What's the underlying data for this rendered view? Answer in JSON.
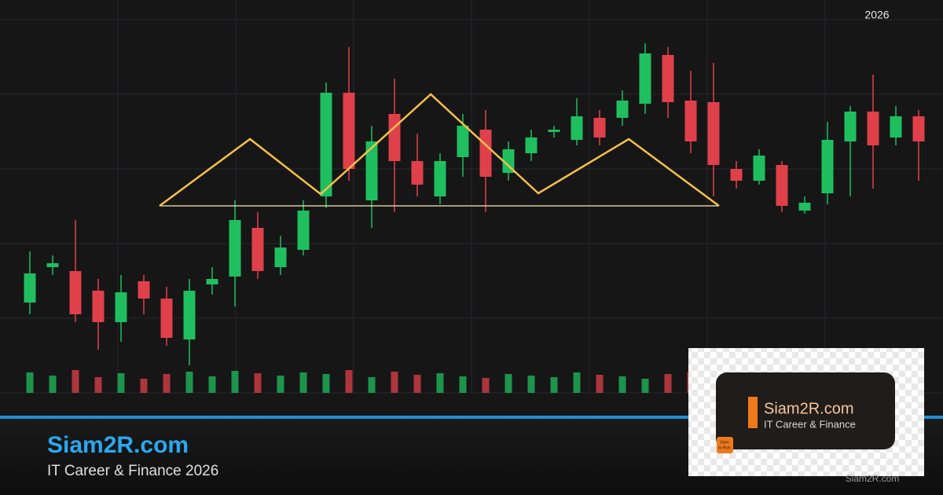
{
  "chart_data": {
    "type": "candlestick",
    "year": "2026",
    "candles": [
      {
        "open": 115,
        "high": 180,
        "low": 100,
        "close": 152
      },
      {
        "open": 160,
        "high": 175,
        "low": 150,
        "close": 165
      },
      {
        "open": 155,
        "high": 220,
        "low": 90,
        "close": 100
      },
      {
        "open": 130,
        "high": 145,
        "low": 55,
        "close": 90
      },
      {
        "open": 90,
        "high": 150,
        "low": 65,
        "close": 128
      },
      {
        "open": 142,
        "high": 150,
        "low": 100,
        "close": 120
      },
      {
        "open": 120,
        "high": 135,
        "low": 60,
        "close": 70
      },
      {
        "open": 68,
        "high": 145,
        "low": 35,
        "close": 130
      },
      {
        "open": 138,
        "high": 160,
        "low": 125,
        "close": 145
      },
      {
        "open": 148,
        "high": 245,
        "low": 110,
        "close": 220
      },
      {
        "open": 210,
        "high": 230,
        "low": 145,
        "close": 155
      },
      {
        "open": 160,
        "high": 200,
        "low": 150,
        "close": 185
      },
      {
        "open": 182,
        "high": 245,
        "low": 175,
        "close": 232
      },
      {
        "open": 250,
        "high": 395,
        "low": 235,
        "close": 382
      },
      {
        "open": 382,
        "high": 440,
        "low": 270,
        "close": 285
      },
      {
        "open": 245,
        "high": 340,
        "low": 210,
        "close": 320
      },
      {
        "open": 355,
        "high": 400,
        "low": 230,
        "close": 295
      },
      {
        "open": 295,
        "high": 330,
        "low": 250,
        "close": 265
      },
      {
        "open": 250,
        "high": 305,
        "low": 240,
        "close": 295
      },
      {
        "open": 300,
        "high": 355,
        "low": 275,
        "close": 340
      },
      {
        "open": 335,
        "high": 360,
        "low": 230,
        "close": 275
      },
      {
        "open": 280,
        "high": 320,
        "low": 270,
        "close": 310
      },
      {
        "open": 305,
        "high": 335,
        "low": 295,
        "close": 325
      },
      {
        "open": 332,
        "high": 340,
        "low": 325,
        "close": 335
      },
      {
        "open": 322,
        "high": 375,
        "low": 315,
        "close": 352
      },
      {
        "open": 350,
        "high": 360,
        "low": 315,
        "close": 325
      },
      {
        "open": 350,
        "high": 385,
        "low": 340,
        "close": 372
      },
      {
        "open": 368,
        "high": 445,
        "low": 355,
        "close": 432
      },
      {
        "open": 430,
        "high": 440,
        "low": 350,
        "close": 370
      },
      {
        "open": 372,
        "high": 410,
        "low": 305,
        "close": 320
      },
      {
        "open": 370,
        "high": 420,
        "low": 250,
        "close": 290
      },
      {
        "open": 285,
        "high": 295,
        "low": 260,
        "close": 270
      },
      {
        "open": 270,
        "high": 310,
        "low": 265,
        "close": 302
      },
      {
        "open": 290,
        "high": 295,
        "low": 230,
        "close": 238
      },
      {
        "open": 232,
        "high": 250,
        "low": 228,
        "close": 242
      },
      {
        "open": 254,
        "high": 345,
        "low": 240,
        "close": 322
      },
      {
        "open": 320,
        "high": 365,
        "low": 250,
        "close": 358
      },
      {
        "open": 358,
        "high": 405,
        "low": 260,
        "close": 315
      },
      {
        "open": 325,
        "high": 365,
        "low": 315,
        "close": 352
      },
      {
        "open": 352,
        "high": 360,
        "low": 270,
        "close": 320
      }
    ],
    "volumes": [
      26,
      22,
      29,
      20,
      25,
      18,
      24,
      27,
      21,
      28,
      25,
      22,
      26,
      24,
      29,
      20,
      27,
      23,
      25,
      21,
      19,
      24,
      22,
      20,
      26,
      23,
      21,
      18,
      24,
      27,
      22,
      25,
      20,
      24,
      26,
      22,
      28,
      23,
      25,
      21
    ],
    "ylim": [
      0,
      500
    ],
    "volume_lim": [
      0,
      100
    ],
    "up_color": "#1fbf5f",
    "down_color": "#e0404a",
    "pattern": {
      "color": "#f5c04a",
      "x": [
        5.69,
        9.66,
        12.76,
        17.59,
        22.31,
        26.28,
        30.24
      ],
      "y": [
        238,
        323,
        253,
        380,
        254,
        323,
        238
      ],
      "neckline": 238
    }
  },
  "footer": {
    "site": "Siam2R.com",
    "tagline": "IT Career & Finance 2026",
    "watermark": "Siam2R.com"
  },
  "logo": {
    "title": "Siam2R.com",
    "subtitle": "IT Career & Finance",
    "badge_line1": "Siam",
    "badge_line2": "to Rich"
  }
}
